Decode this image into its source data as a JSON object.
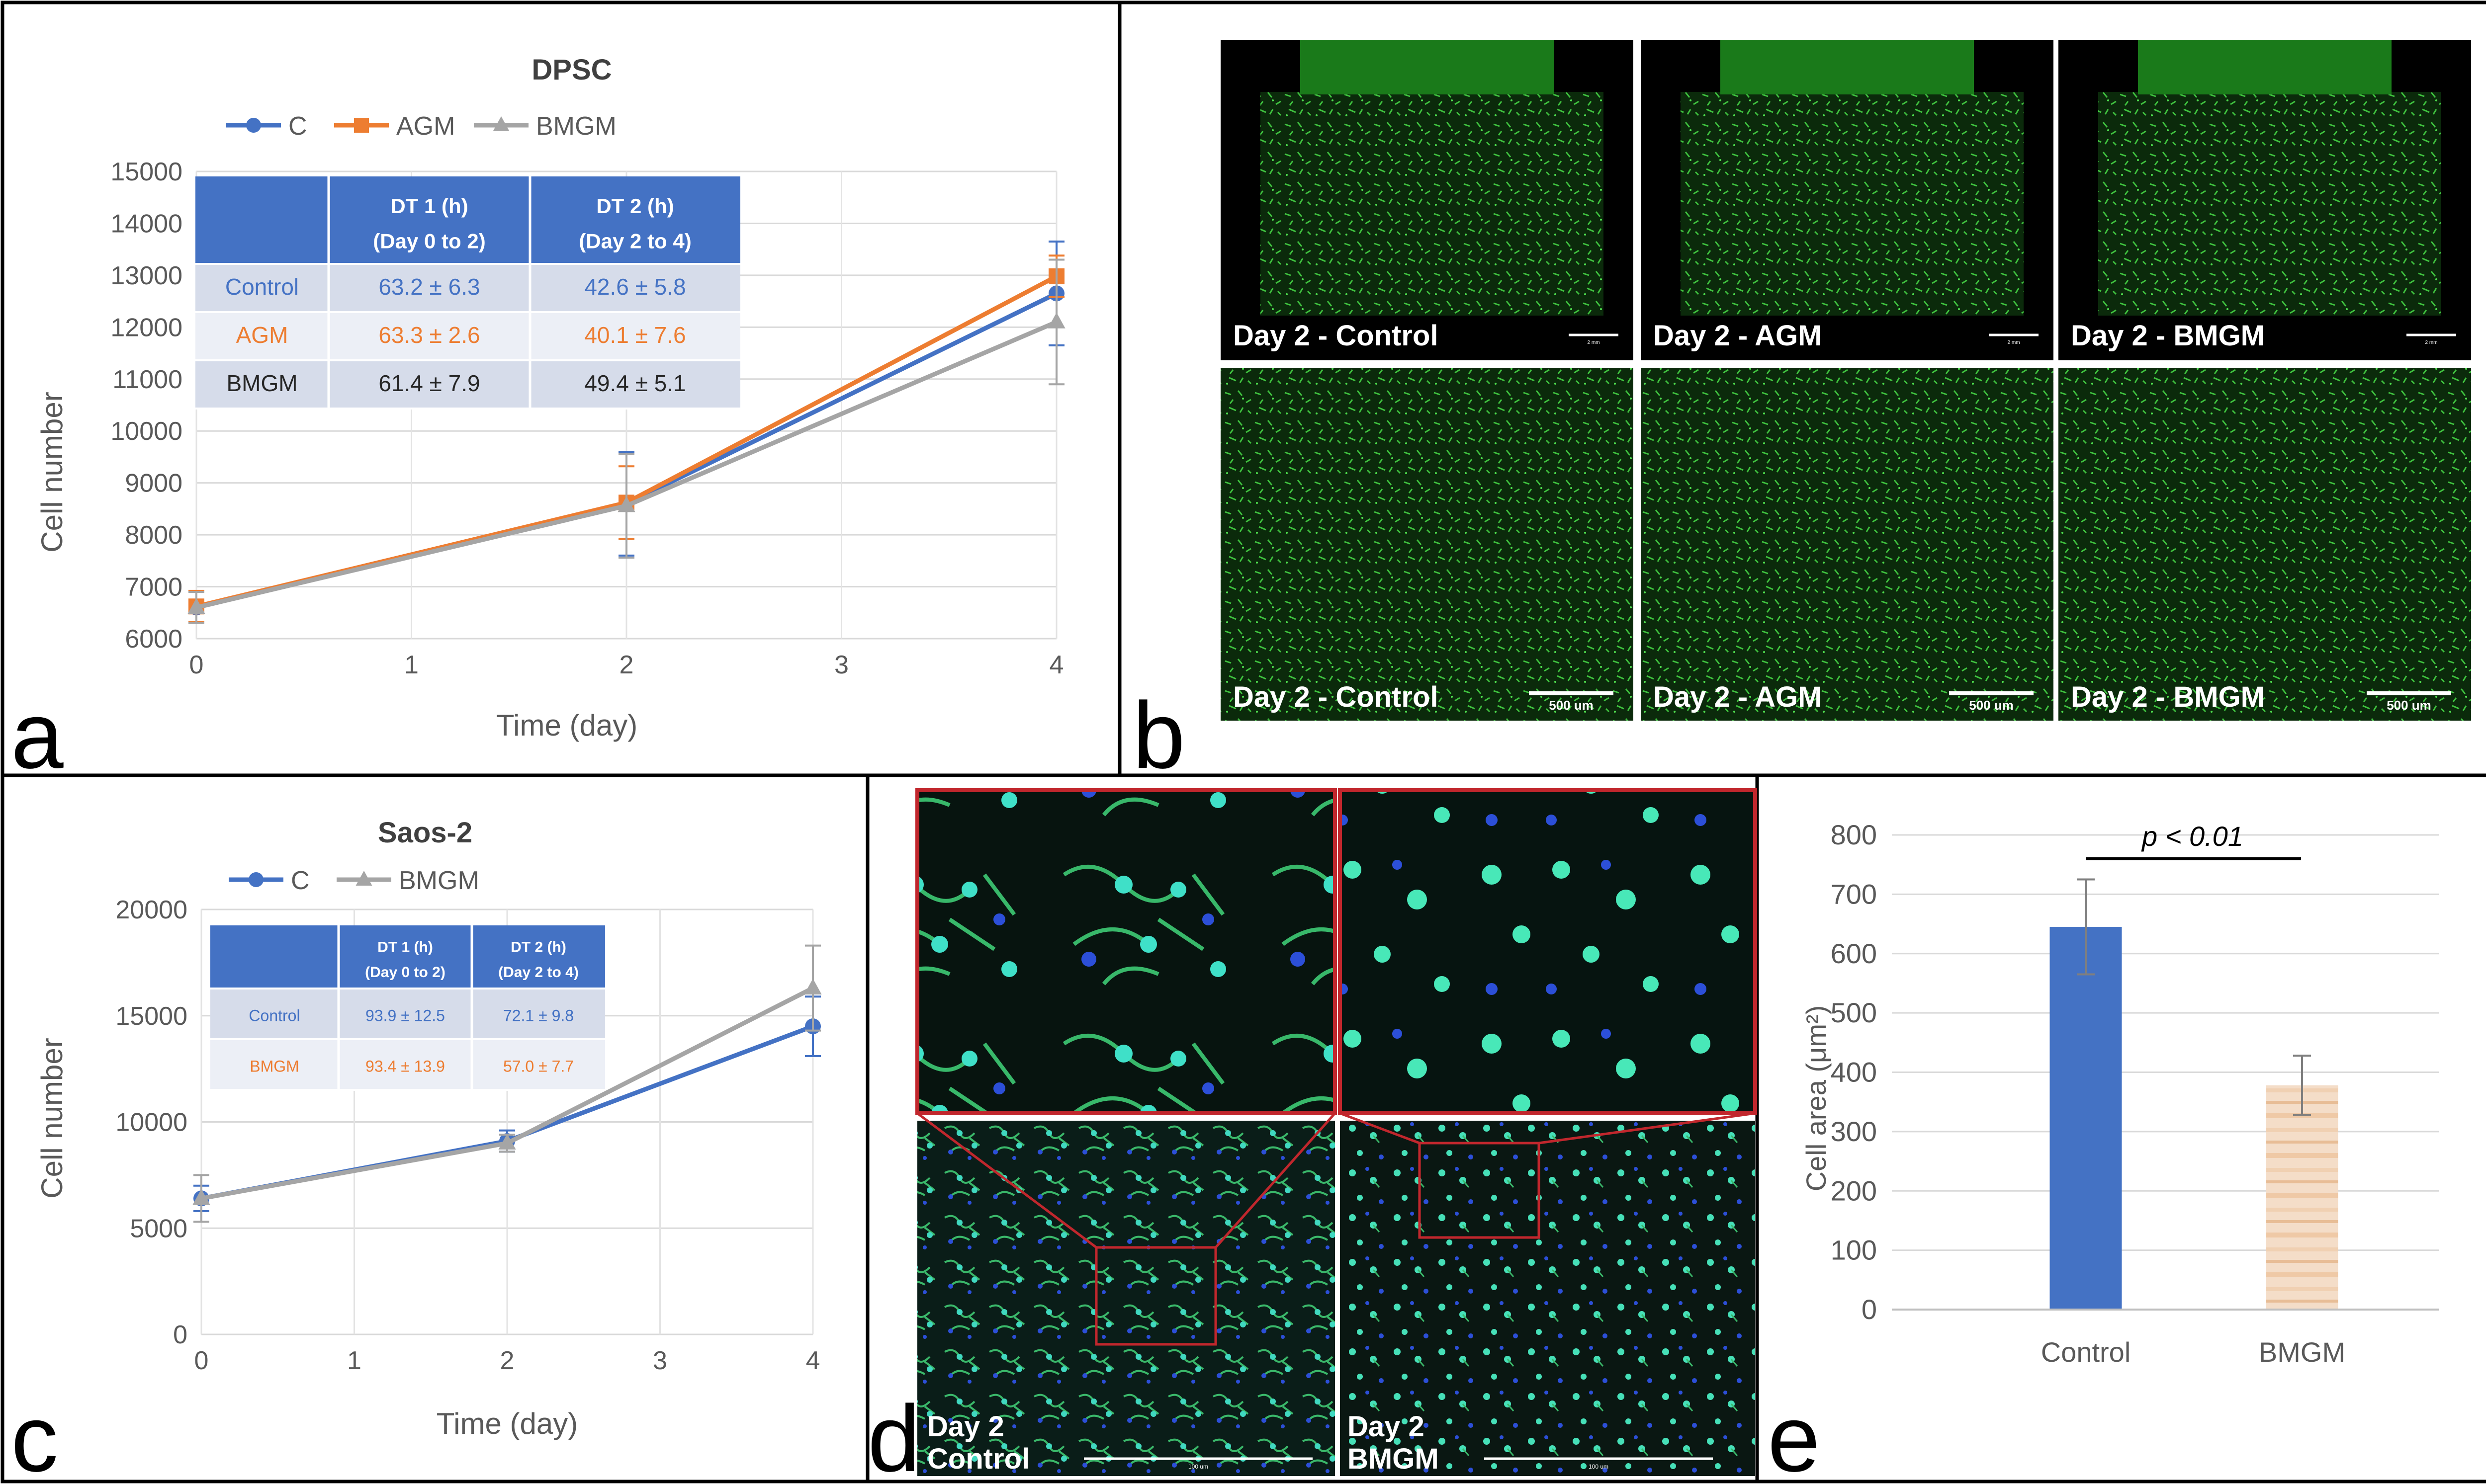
{
  "panel_labels": {
    "a": "a",
    "b": "b",
    "c": "c",
    "d": "d",
    "e": "e"
  },
  "colors": {
    "C": "#4472c4",
    "AGM": "#ed7d31",
    "BMGM": "#a5a5a5",
    "table_header": "#4472c4",
    "table_row1": "#d6dcea",
    "table_row2": "#eceff6",
    "table_row3": "#d6dcea",
    "micro_green": "#3cd43c",
    "micro_blue": "#2c4fd8",
    "micro_box": "#c1272d"
  },
  "chart_data": [
    {
      "id": "a",
      "type": "line",
      "title": "DPSC",
      "xlabel": "Time (day)",
      "ylabel": "Cell number",
      "xlim": [
        0,
        4
      ],
      "ylim": [
        6000,
        15000
      ],
      "xticks": [
        0,
        1,
        2,
        3,
        4
      ],
      "yticks": [
        6000,
        7000,
        8000,
        9000,
        10000,
        11000,
        12000,
        13000,
        14000,
        15000
      ],
      "x": [
        0,
        2,
        4
      ],
      "series": [
        {
          "name": "C",
          "values": [
            6600,
            8600,
            12650
          ],
          "errors": [
            300,
            1000,
            1000
          ],
          "marker": "circle"
        },
        {
          "name": "AGM",
          "values": [
            6620,
            8620,
            12980
          ],
          "errors": [
            300,
            700,
            400
          ],
          "marker": "square"
        },
        {
          "name": "BMGM",
          "values": [
            6600,
            8560,
            12100
          ],
          "errors": [
            300,
            1000,
            1200
          ],
          "marker": "triangle"
        }
      ],
      "legend": [
        "C",
        "AGM",
        "BMGM"
      ],
      "table": {
        "headers": [
          "",
          "DT 1 (h)",
          "DT 2 (h)"
        ],
        "subheaders": [
          "",
          "(Day 0 to 2)",
          "(Day 2 to 4)"
        ],
        "rows": [
          {
            "label": "Control",
            "dt1": "63.2 ± 6.3",
            "dt2": "42.6 ± 5.8"
          },
          {
            "label": "AGM",
            "dt1": "63.3 ± 2.6",
            "dt2": "40.1 ± 7.6"
          },
          {
            "label": "BMGM",
            "dt1": "61.4 ± 7.9",
            "dt2": "49.4 ± 5.1"
          }
        ]
      }
    },
    {
      "id": "c",
      "type": "line",
      "title": "Saos-2",
      "xlabel": "Time (day)",
      "ylabel": "Cell number",
      "xlim": [
        0,
        4
      ],
      "ylim": [
        0,
        20000
      ],
      "xticks": [
        0,
        1,
        2,
        3,
        4
      ],
      "yticks": [
        0,
        5000,
        10000,
        15000,
        20000
      ],
      "x": [
        0,
        2,
        4
      ],
      "series": [
        {
          "name": "C",
          "values": [
            6400,
            9100,
            14500
          ],
          "errors": [
            600,
            500,
            1400
          ],
          "marker": "circle"
        },
        {
          "name": "BMGM",
          "values": [
            6400,
            9000,
            16300
          ],
          "errors": [
            1100,
            400,
            2000
          ],
          "marker": "triangle"
        }
      ],
      "legend": [
        "C",
        "BMGM"
      ],
      "table": {
        "headers": [
          "",
          "DT 1 (h)",
          "DT 2 (h)"
        ],
        "subheaders": [
          "",
          "(Day 0 to 2)",
          "(Day 2 to 4)"
        ],
        "rows": [
          {
            "label": "Control",
            "dt1": "93.9 ± 12.5",
            "dt2": "72.1 ± 9.8"
          },
          {
            "label": "BMGM",
            "dt1": "93.4 ± 13.9",
            "dt2": "57.0 ± 7.7"
          }
        ]
      }
    },
    {
      "id": "e",
      "type": "bar",
      "categories": [
        "Control",
        "BMGM"
      ],
      "values": [
        645,
        378
      ],
      "errors": [
        80,
        50
      ],
      "ylabel": "Cell area (μm²)",
      "ylim": [
        0,
        800
      ],
      "yticks": [
        0,
        100,
        200,
        300,
        400,
        500,
        600,
        700,
        800
      ],
      "annotation": "p < 0.01"
    }
  ],
  "panel_b": {
    "top_captions": [
      "Day 2 - Control",
      "Day 2 - AGM",
      "Day 2 - BMGM"
    ],
    "top_scale": "2 mm",
    "bottom_captions": [
      "Day 2 - Control",
      "Day 2 - AGM",
      "Day 2 - BMGM"
    ],
    "bottom_scale": "500 um"
  },
  "panel_d": {
    "caption_left_line1": "Day 2",
    "caption_left_line2": "Control",
    "caption_right_line1": "Day 2",
    "caption_right_line2": "BMGM",
    "scale_label": "100 um"
  }
}
